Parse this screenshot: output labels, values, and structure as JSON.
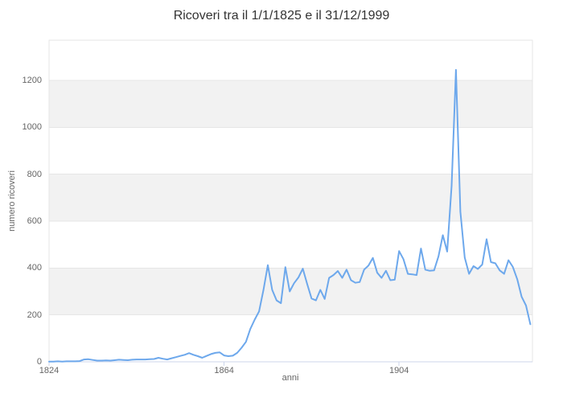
{
  "chart_data": {
    "type": "line",
    "title": "Ricoveri tra il 1/1/1825 e il 31/12/1999",
    "xlabel": "anni",
    "ylabel": "numero ricoveri",
    "x_tick_labels": [
      "1824",
      "1864",
      "1904"
    ],
    "x_tick_data_indices": [
      0,
      40,
      80
    ],
    "y_ticks": [
      0,
      200,
      400,
      600,
      800,
      1000,
      1200
    ],
    "ylim": [
      0,
      1371
    ],
    "legend": "none",
    "grid": {
      "horizontal_gridlines": true,
      "alternating_bands": [
        [
          200,
          400
        ],
        [
          600,
          800
        ],
        [
          1000,
          1200
        ]
      ]
    },
    "colors": {
      "line": "#6da8ec",
      "gridline": "#e6e6e6",
      "band": "#f2f2f2",
      "axis_line": "#ccd6eb",
      "tick_text": "#666666",
      "title_text": "#333333"
    },
    "series": [
      {
        "name": "numero ricoveri",
        "values": [
          1,
          1,
          2,
          1,
          2,
          2,
          2,
          3,
          10,
          11,
          8,
          5,
          5,
          6,
          5,
          7,
          9,
          8,
          7,
          9,
          10,
          10,
          10,
          11,
          12,
          17,
          13,
          10,
          15,
          20,
          25,
          30,
          37,
          30,
          24,
          17,
          25,
          33,
          38,
          40,
          27,
          24,
          26,
          38,
          60,
          85,
          140,
          180,
          215,
          307,
          412,
          307,
          262,
          250,
          404,
          300,
          335,
          360,
          397,
          331,
          270,
          262,
          307,
          268,
          358,
          370,
          387,
          358,
          393,
          348,
          337,
          340,
          393,
          410,
          443,
          380,
          358,
          388,
          348,
          350,
          472,
          438,
          375,
          373,
          370,
          483,
          393,
          388,
          390,
          450,
          540,
          470,
          750,
          1245,
          640,
          445,
          375,
          408,
          396,
          415,
          523,
          425,
          420,
          390,
          375,
          433,
          405,
          352,
          278,
          240,
          160
        ]
      }
    ]
  }
}
